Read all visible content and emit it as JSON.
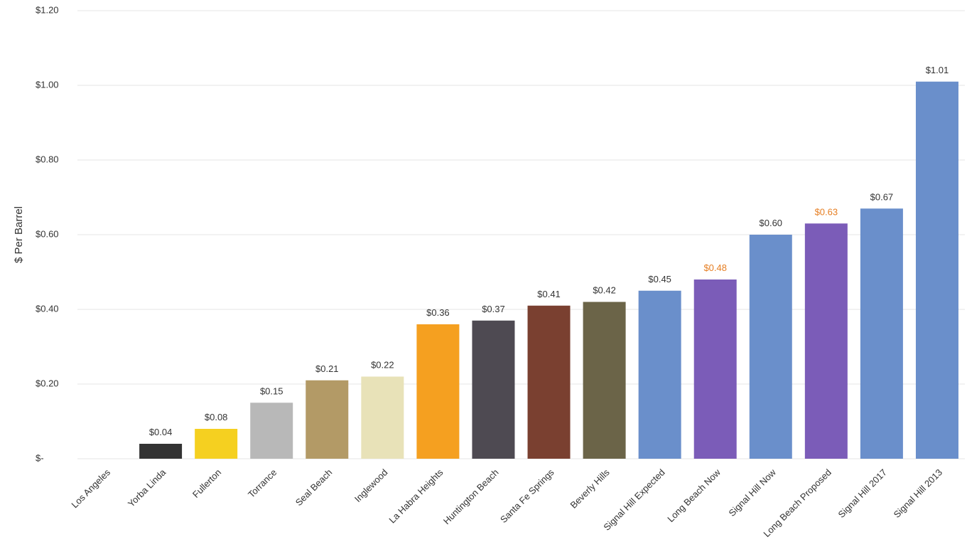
{
  "chart_data": {
    "type": "bar",
    "y_label": "$ Per Barrel",
    "categories": [
      "Los Angeles",
      "Yorba Linda",
      "Fullerton",
      "Torrance",
      "Seal Beach",
      "Inglewood",
      "La Habra Heights",
      "Huntington Beach",
      "Santa Fe Springs",
      "Beverly Hills",
      "Signal Hill Expected",
      "Long Beach Now",
      "Signal Hill Now",
      "Long Beach Proposed",
      "Signal Hill 2017",
      "Signal Hill 2013"
    ],
    "values": [
      0,
      0.04,
      0.08,
      0.15,
      0.21,
      0.22,
      0.36,
      0.37,
      0.41,
      0.42,
      0.45,
      0.48,
      0.6,
      0.63,
      0.67,
      1.01
    ],
    "value_labels": [
      null,
      "$0.04",
      "$0.08",
      "$0.15",
      "$0.21",
      "$0.22",
      "$0.36",
      "$0.37",
      "$0.41",
      "$0.42",
      "$0.45",
      "$0.48",
      "$0.60",
      "$0.63",
      "$0.67",
      "$1.01"
    ],
    "colors": [
      "#6a8fcb",
      "#333333",
      "#f5d020",
      "#b8b8b8",
      "#b39a66",
      "#e8e2b8",
      "#f5a020",
      "#4e4a52",
      "#7a4030",
      "#6b6448",
      "#6a8fcb",
      "#7b5cb8",
      "#6a8fcb",
      "#7b5cb8",
      "#6a8fcb",
      "#6a8fcb"
    ],
    "label_colors": [
      "#333333",
      "#333333",
      "#333333",
      "#333333",
      "#333333",
      "#333333",
      "#333333",
      "#333333",
      "#333333",
      "#333333",
      "#333333",
      "#e67e22",
      "#333333",
      "#e67e22",
      "#333333",
      "#333333"
    ],
    "ylim": [
      0,
      1.2
    ],
    "yticks": [
      {
        "value": 0,
        "label": "$-"
      },
      {
        "value": 0.2,
        "label": "$0.20"
      },
      {
        "value": 0.4,
        "label": "$0.40"
      },
      {
        "value": 0.6,
        "label": "$0.60"
      },
      {
        "value": 0.8,
        "label": "$0.80"
      },
      {
        "value": 1.0,
        "label": "$1.00"
      },
      {
        "value": 1.2,
        "label": "$1.20"
      }
    ],
    "grid": true
  }
}
